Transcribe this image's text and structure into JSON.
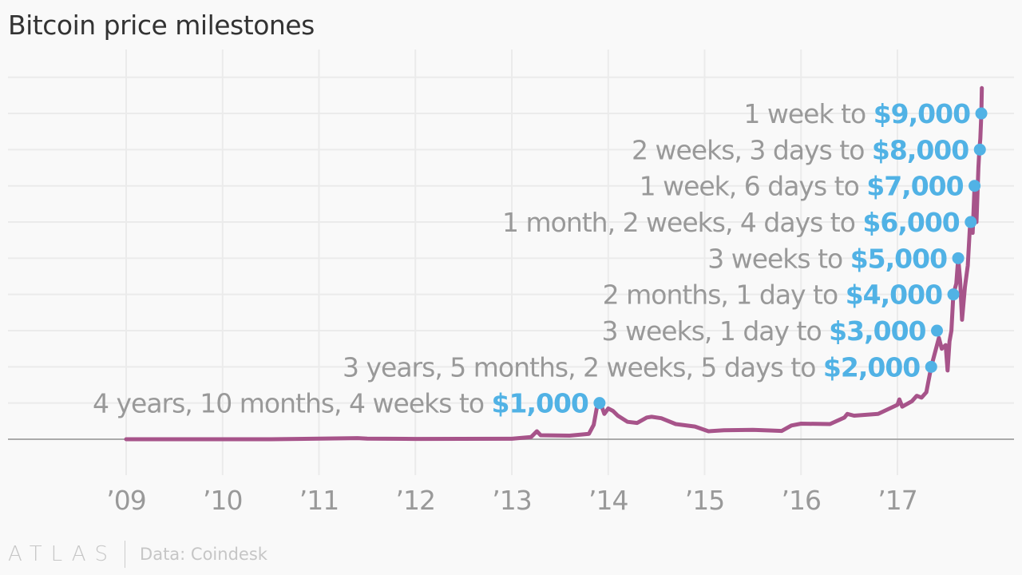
{
  "chart_data": {
    "type": "line",
    "title": "Bitcoin price milestones",
    "xlabel": "",
    "ylabel": "",
    "xlim": [
      2009,
      2018.2
    ],
    "ylim": [
      0,
      10000
    ],
    "grid": true,
    "x_ticks": [
      {
        "value": 2009,
        "label": "’09"
      },
      {
        "value": 2010,
        "label": "’10"
      },
      {
        "value": 2011,
        "label": "’11"
      },
      {
        "value": 2012,
        "label": "’12"
      },
      {
        "value": 2013,
        "label": "’13"
      },
      {
        "value": 2014,
        "label": "’14"
      },
      {
        "value": 2015,
        "label": "’15"
      },
      {
        "value": 2016,
        "label": "’16"
      },
      {
        "value": 2017,
        "label": "’17"
      }
    ],
    "y_gridlines": [
      0,
      1000,
      2000,
      3000,
      4000,
      5000,
      6000,
      7000,
      8000,
      9000,
      10000
    ],
    "series": [
      {
        "color": "#a7548a",
        "points": [
          [
            2009.0,
            0
          ],
          [
            2010.5,
            0
          ],
          [
            2011.4,
            30
          ],
          [
            2011.5,
            15
          ],
          [
            2012.0,
            8
          ],
          [
            2013.0,
            13
          ],
          [
            2013.2,
            60
          ],
          [
            2013.26,
            220
          ],
          [
            2013.3,
            110
          ],
          [
            2013.6,
            100
          ],
          [
            2013.8,
            150
          ],
          [
            2013.85,
            400
          ],
          [
            2013.88,
            850
          ],
          [
            2013.92,
            1000
          ],
          [
            2013.96,
            700
          ],
          [
            2014.0,
            850
          ],
          [
            2014.05,
            780
          ],
          [
            2014.1,
            650
          ],
          [
            2014.2,
            480
          ],
          [
            2014.3,
            450
          ],
          [
            2014.4,
            600
          ],
          [
            2014.45,
            620
          ],
          [
            2014.55,
            580
          ],
          [
            2014.7,
            420
          ],
          [
            2014.9,
            350
          ],
          [
            2015.04,
            220
          ],
          [
            2015.2,
            250
          ],
          [
            2015.5,
            260
          ],
          [
            2015.7,
            240
          ],
          [
            2015.8,
            230
          ],
          [
            2015.9,
            380
          ],
          [
            2016.0,
            430
          ],
          [
            2016.3,
            420
          ],
          [
            2016.45,
            600
          ],
          [
            2016.48,
            700
          ],
          [
            2016.55,
            650
          ],
          [
            2016.8,
            700
          ],
          [
            2017.0,
            950
          ],
          [
            2017.02,
            1100
          ],
          [
            2017.05,
            900
          ],
          [
            2017.15,
            1050
          ],
          [
            2017.2,
            1200
          ],
          [
            2017.25,
            1150
          ],
          [
            2017.3,
            1300
          ],
          [
            2017.35,
            2000
          ],
          [
            2017.4,
            2500
          ],
          [
            2017.43,
            2800
          ],
          [
            2017.46,
            2500
          ],
          [
            2017.5,
            2600
          ],
          [
            2017.52,
            1900
          ],
          [
            2017.54,
            2700
          ],
          [
            2017.56,
            3000
          ],
          [
            2017.58,
            4000
          ],
          [
            2017.61,
            4300
          ],
          [
            2017.63,
            5000
          ],
          [
            2017.65,
            4400
          ],
          [
            2017.67,
            3300
          ],
          [
            2017.7,
            4200
          ],
          [
            2017.73,
            4800
          ],
          [
            2017.75,
            5800
          ],
          [
            2017.76,
            6000
          ],
          [
            2017.78,
            5700
          ],
          [
            2017.8,
            7000
          ],
          [
            2017.82,
            6000
          ],
          [
            2017.84,
            7500
          ],
          [
            2017.85,
            8000
          ],
          [
            2017.86,
            8300
          ],
          [
            2017.87,
            9000
          ],
          [
            2017.875,
            9700
          ]
        ]
      }
    ],
    "milestones": [
      {
        "x": 2017.87,
        "price": 9000,
        "prefix": "1 week to ",
        "label": "$9,000"
      },
      {
        "x": 2017.855,
        "price": 8000,
        "prefix": "2 weeks, 3 days to ",
        "label": "$8,000"
      },
      {
        "x": 2017.8,
        "price": 7000,
        "prefix": "1 week, 6 days to ",
        "label": "$7,000"
      },
      {
        "x": 2017.76,
        "price": 6000,
        "prefix": "1 month, 2 weeks, 4 days to ",
        "label": "$6,000"
      },
      {
        "x": 2017.63,
        "price": 5000,
        "prefix": "3 weeks to ",
        "label": "$5,000"
      },
      {
        "x": 2017.58,
        "price": 4000,
        "prefix": "2 months, 1 day to ",
        "label": "$4,000"
      },
      {
        "x": 2017.41,
        "price": 3000,
        "prefix": "3 weeks, 1 day to ",
        "label": "$3,000"
      },
      {
        "x": 2017.35,
        "price": 2000,
        "prefix": "3 years, 5 months, 2 weeks, 5 days to ",
        "label": "$2,000"
      },
      {
        "x": 2013.91,
        "price": 1000,
        "prefix": "4 years, 10 months, 4 weeks to ",
        "label": "$1,000"
      }
    ],
    "milestone_color": "#51b2e5"
  },
  "footer": {
    "logo": "ATLAS",
    "source": "Data: Coindesk"
  }
}
